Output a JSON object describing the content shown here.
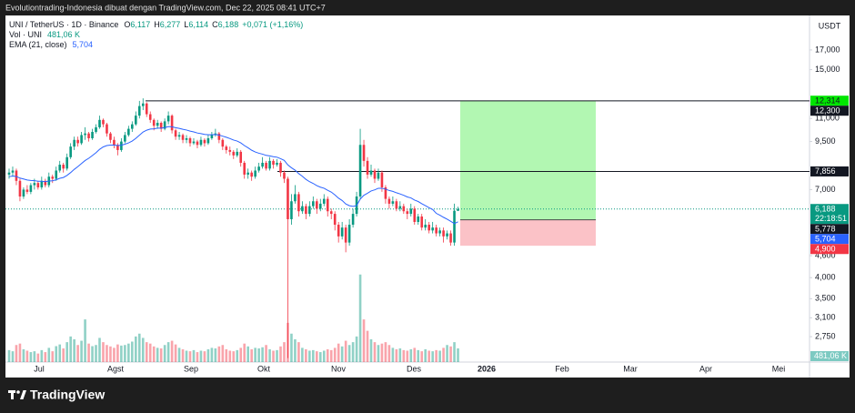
{
  "chart_data": {
    "type": "candlestick",
    "header": "Evolutiontrading-Indonesia dibuat dengan TradingView.com, Dec 22, 2025 08:41 UTC+7",
    "brand": "TradingView",
    "legend": {
      "symbol": "UNI / TetherUS · 1D · Binance",
      "ohlc": [
        {
          "key": "O",
          "label": "6,117"
        },
        {
          "key": "H",
          "label": "6,277"
        },
        {
          "key": "L",
          "label": "6,114"
        },
        {
          "key": "C",
          "label": "6,188"
        }
      ],
      "change": "+0,071 (+1,16%)",
      "volume_name": "Vol · UNI",
      "volume_label": "481,06 K",
      "ema_name": "EMA (21, close)",
      "ema_label": "5,704"
    },
    "unit": "USDT",
    "countdown": "22:18:51",
    "log_scale": true,
    "ylim": [
      2.34,
      20.8
    ],
    "yticks": [
      {
        "value": 17,
        "label": "17,000"
      },
      {
        "value": 15,
        "label": "15,000"
      },
      {
        "value": 11,
        "label": "11,000"
      },
      {
        "value": 9.5,
        "label": "9,500"
      },
      {
        "value": 7,
        "label": "7,000"
      },
      {
        "value": 4.6,
        "label": "4,600"
      },
      {
        "value": 4,
        "label": "4,000"
      },
      {
        "value": 3.5,
        "label": "3,500"
      },
      {
        "value": 3.1,
        "label": "3,100"
      },
      {
        "value": 2.75,
        "label": "2,750"
      }
    ],
    "x_labels": [
      "Jul",
      "Agst",
      "Sep",
      "Okt",
      "Nov",
      "Des",
      "2026",
      "Feb",
      "Mar",
      "Apr",
      "Mei"
    ],
    "up_color": "#089981",
    "down_color": "#f23645",
    "ema_color": "#2962ff",
    "levels": [
      {
        "value": 12.3,
        "label": "12,300"
      },
      {
        "value": 7.856,
        "label": "7,856"
      }
    ],
    "position": {
      "target": {
        "value": 12.314,
        "label": "12,314"
      },
      "entry": {
        "value": 5.778,
        "label": "5,778"
      },
      "stop": {
        "value": 4.9,
        "label": "4,900"
      }
    },
    "candles": [
      [
        7.7,
        8.0,
        7.5,
        7.8
      ],
      [
        7.8,
        8.1,
        7.6,
        7.9
      ],
      [
        7.9,
        8.0,
        7.2,
        7.4
      ],
      [
        7.4,
        7.5,
        6.5,
        6.7
      ],
      [
        6.7,
        7.1,
        6.6,
        7.0
      ],
      [
        7.0,
        7.2,
        6.8,
        6.9
      ],
      [
        6.9,
        7.3,
        6.8,
        7.2
      ],
      [
        7.2,
        7.5,
        7.0,
        7.3
      ],
      [
        7.3,
        7.4,
        7.0,
        7.1
      ],
      [
        7.1,
        7.6,
        7.0,
        7.4
      ],
      [
        7.4,
        7.5,
        7.1,
        7.2
      ],
      [
        7.2,
        7.8,
        7.1,
        7.6
      ],
      [
        7.6,
        7.7,
        7.3,
        7.5
      ],
      [
        7.5,
        8.1,
        7.4,
        7.9
      ],
      [
        7.9,
        8.4,
        7.8,
        8.2
      ],
      [
        8.2,
        8.3,
        7.8,
        8.0
      ],
      [
        8.0,
        8.8,
        7.9,
        8.6
      ],
      [
        8.6,
        9.4,
        8.5,
        9.2
      ],
      [
        9.2,
        9.8,
        9.0,
        9.6
      ],
      [
        9.6,
        9.8,
        9.2,
        9.4
      ],
      [
        9.4,
        10.1,
        9.3,
        9.9
      ],
      [
        9.9,
        10.4,
        9.6,
        10.0
      ],
      [
        10.0,
        10.1,
        9.5,
        9.7
      ],
      [
        9.7,
        10.3,
        9.6,
        10.1
      ],
      [
        10.1,
        10.6,
        10.0,
        10.4
      ],
      [
        10.4,
        11.2,
        10.3,
        10.9
      ],
      [
        10.9,
        11.0,
        10.4,
        10.6
      ],
      [
        10.6,
        10.7,
        9.8,
        10.0
      ],
      [
        10.0,
        10.1,
        9.4,
        9.6
      ],
      [
        9.6,
        9.8,
        9.1,
        9.3
      ],
      [
        9.3,
        9.4,
        8.7,
        9.0
      ],
      [
        9.0,
        9.7,
        8.9,
        9.5
      ],
      [
        9.5,
        10.1,
        9.4,
        9.9
      ],
      [
        9.9,
        10.5,
        9.8,
        10.3
      ],
      [
        10.3,
        10.8,
        10.1,
        10.6
      ],
      [
        10.6,
        11.5,
        10.5,
        11.2
      ],
      [
        11.2,
        12.3,
        11.0,
        11.9
      ],
      [
        11.9,
        12.5,
        11.6,
        12.1
      ],
      [
        12.1,
        12.2,
        11.1,
        11.3
      ],
      [
        11.3,
        11.5,
        10.7,
        10.9
      ],
      [
        10.9,
        11.0,
        10.2,
        10.5
      ],
      [
        10.5,
        10.9,
        10.3,
        10.7
      ],
      [
        10.7,
        10.8,
        10.1,
        10.3
      ],
      [
        10.3,
        11.0,
        10.2,
        10.8
      ],
      [
        10.8,
        11.5,
        10.6,
        11.2
      ],
      [
        11.2,
        11.3,
        10.0,
        10.2
      ],
      [
        10.2,
        10.3,
        9.6,
        9.8
      ],
      [
        9.8,
        10.1,
        9.6,
        9.9
      ],
      [
        9.9,
        10.0,
        9.4,
        9.6
      ],
      [
        9.6,
        9.9,
        9.4,
        9.7
      ],
      [
        9.7,
        9.8,
        9.2,
        9.4
      ],
      [
        9.4,
        9.7,
        9.3,
        9.5
      ],
      [
        9.5,
        9.6,
        9.1,
        9.3
      ],
      [
        9.3,
        9.8,
        9.2,
        9.6
      ],
      [
        9.6,
        9.7,
        9.2,
        9.4
      ],
      [
        9.4,
        9.9,
        9.3,
        9.7
      ],
      [
        9.7,
        10.1,
        9.6,
        9.9
      ],
      [
        9.9,
        10.3,
        9.8,
        10.0
      ],
      [
        10.0,
        10.1,
        9.4,
        9.6
      ],
      [
        9.6,
        9.7,
        9.0,
        9.2
      ],
      [
        9.2,
        9.3,
        8.8,
        9.0
      ],
      [
        9.0,
        9.2,
        8.7,
        8.9
      ],
      [
        8.9,
        9.0,
        8.5,
        8.7
      ],
      [
        8.7,
        9.1,
        8.6,
        8.9
      ],
      [
        8.9,
        9.0,
        8.1,
        8.3
      ],
      [
        8.3,
        8.4,
        7.5,
        7.7
      ],
      [
        7.7,
        8.0,
        7.5,
        7.8
      ],
      [
        7.8,
        7.9,
        7.4,
        7.6
      ],
      [
        7.6,
        8.1,
        7.5,
        7.9
      ],
      [
        7.9,
        8.3,
        7.8,
        8.1
      ],
      [
        8.1,
        8.6,
        8.0,
        8.3
      ],
      [
        8.3,
        8.4,
        7.9,
        8.0
      ],
      [
        8.0,
        8.6,
        7.9,
        8.4
      ],
      [
        8.4,
        8.5,
        8.0,
        8.2
      ],
      [
        8.2,
        8.5,
        8.1,
        8.3
      ],
      [
        8.3,
        8.4,
        7.6,
        7.8
      ],
      [
        7.8,
        7.9,
        7.3,
        7.5
      ],
      [
        7.5,
        7.6,
        2.4,
        5.8
      ],
      [
        5.8,
        6.8,
        5.6,
        6.5
      ],
      [
        6.5,
        7.2,
        6.4,
        6.8
      ],
      [
        6.8,
        6.9,
        5.9,
        6.1
      ],
      [
        6.1,
        6.5,
        6.0,
        6.3
      ],
      [
        6.3,
        6.4,
        5.8,
        6.0
      ],
      [
        6.0,
        6.5,
        5.9,
        6.3
      ],
      [
        6.3,
        6.7,
        6.2,
        6.5
      ],
      [
        6.5,
        6.6,
        6.0,
        6.2
      ],
      [
        6.2,
        6.6,
        6.1,
        6.4
      ],
      [
        6.4,
        6.8,
        6.3,
        6.6
      ],
      [
        6.6,
        6.7,
        5.9,
        6.1
      ],
      [
        6.1,
        6.2,
        5.8,
        6.0
      ],
      [
        6.0,
        6.1,
        5.4,
        5.6
      ],
      [
        5.6,
        5.7,
        5.0,
        5.2
      ],
      [
        5.2,
        5.7,
        5.1,
        5.5
      ],
      [
        5.5,
        5.6,
        4.7,
        5.0
      ],
      [
        5.0,
        5.8,
        4.9,
        5.6
      ],
      [
        5.6,
        6.2,
        5.5,
        6.0
      ],
      [
        6.0,
        6.9,
        5.9,
        6.7
      ],
      [
        6.7,
        10.3,
        6.6,
        9.3
      ],
      [
        9.3,
        9.6,
        8.1,
        8.4
      ],
      [
        8.4,
        8.6,
        7.5,
        7.7
      ],
      [
        7.7,
        8.2,
        7.6,
        7.9
      ],
      [
        7.9,
        8.0,
        7.3,
        7.5
      ],
      [
        7.5,
        8.0,
        7.4,
        7.8
      ],
      [
        7.8,
        7.9,
        6.9,
        7.1
      ],
      [
        7.1,
        7.2,
        6.4,
        6.6
      ],
      [
        6.6,
        6.7,
        6.2,
        6.4
      ],
      [
        6.4,
        6.7,
        6.3,
        6.5
      ],
      [
        6.5,
        6.6,
        6.1,
        6.2
      ],
      [
        6.2,
        6.5,
        6.1,
        6.3
      ],
      [
        6.3,
        6.4,
        6.0,
        6.1
      ],
      [
        6.1,
        6.2,
        5.8,
        6.0
      ],
      [
        6.0,
        6.4,
        5.9,
        6.2
      ],
      [
        6.2,
        6.3,
        5.6,
        5.7
      ],
      [
        5.7,
        6.0,
        5.6,
        5.9
      ],
      [
        5.9,
        6.0,
        5.4,
        5.5
      ],
      [
        5.5,
        5.8,
        5.4,
        5.6
      ],
      [
        5.6,
        5.7,
        5.3,
        5.4
      ],
      [
        5.4,
        5.7,
        5.3,
        5.5
      ],
      [
        5.5,
        5.6,
        5.2,
        5.3
      ],
      [
        5.3,
        5.5,
        5.2,
        5.4
      ],
      [
        5.4,
        5.5,
        5.0,
        5.2
      ],
      [
        5.2,
        5.4,
        5.1,
        5.3
      ],
      [
        5.3,
        5.4,
        4.9,
        5.0
      ],
      [
        5.0,
        6.4,
        4.9,
        6.12
      ],
      [
        6.117,
        6.277,
        6.114,
        6.188
      ]
    ],
    "ema": [
      7.6,
      7.63,
      7.61,
      7.53,
      7.49,
      7.44,
      7.42,
      7.41,
      7.38,
      7.38,
      7.36,
      7.39,
      7.4,
      7.45,
      7.52,
      7.56,
      7.66,
      7.8,
      7.96,
      8.1,
      8.26,
      8.42,
      8.54,
      8.69,
      8.85,
      9.04,
      9.18,
      9.26,
      9.29,
      9.29,
      9.26,
      9.28,
      9.34,
      9.42,
      9.53,
      9.69,
      9.89,
      10.09,
      10.21,
      10.28,
      10.3,
      10.34,
      10.34,
      10.38,
      10.45,
      10.43,
      10.37,
      10.33,
      10.27,
      10.22,
      10.15,
      10.1,
      10.03,
      9.99,
      9.94,
      9.92,
      9.92,
      9.93,
      9.9,
      9.83,
      9.76,
      9.68,
      9.59,
      9.53,
      9.42,
      9.26,
      9.13,
      8.99,
      8.89,
      8.82,
      8.77,
      8.7,
      8.67,
      8.63,
      8.6,
      8.52,
      8.43,
      8.19,
      8.04,
      7.92,
      7.75,
      7.62,
      7.47,
      7.36,
      7.28,
      7.18,
      7.11,
      7.06,
      6.97,
      6.89,
      6.77,
      6.63,
      6.53,
      6.39,
      6.32,
      6.29,
      6.32,
      6.59,
      6.75,
      6.84,
      6.94,
      6.99,
      7.06,
      7.06,
      7.02,
      6.96,
      6.92,
      6.86,
      6.81,
      6.75,
      6.68,
      6.64,
      6.55,
      6.49,
      6.4,
      6.32,
      6.24,
      6.17,
      6.02,
      5.95,
      5.87,
      5.8,
      5.72,
      5.64,
      5.704
    ],
    "volume": [
      420,
      380,
      600,
      650,
      450,
      400,
      350,
      380,
      300,
      420,
      350,
      500,
      380,
      560,
      620,
      480,
      700,
      900,
      800,
      600,
      750,
      1500,
      650,
      560,
      600,
      850,
      700,
      600,
      550,
      500,
      620,
      580,
      600,
      650,
      720,
      900,
      1000,
      850,
      700,
      650,
      550,
      500,
      480,
      600,
      700,
      750,
      620,
      500,
      450,
      400,
      380,
      420,
      350,
      400,
      380,
      450,
      500,
      480,
      550,
      600,
      450,
      400,
      380,
      420,
      500,
      650,
      550,
      450,
      500,
      480,
      520,
      600,
      450,
      400,
      420,
      550,
      700,
      1380,
      1000,
      800,
      700,
      500,
      450,
      400,
      420,
      380,
      350,
      400,
      450,
      420,
      500,
      650,
      550,
      750,
      600,
      700,
      900,
      3080,
      1500,
      1100,
      800,
      700,
      600,
      650,
      700,
      600,
      500,
      450,
      480,
      420,
      400,
      450,
      500,
      420,
      380,
      450,
      400,
      380,
      420,
      400,
      500,
      600,
      550,
      700,
      481.06
    ]
  }
}
